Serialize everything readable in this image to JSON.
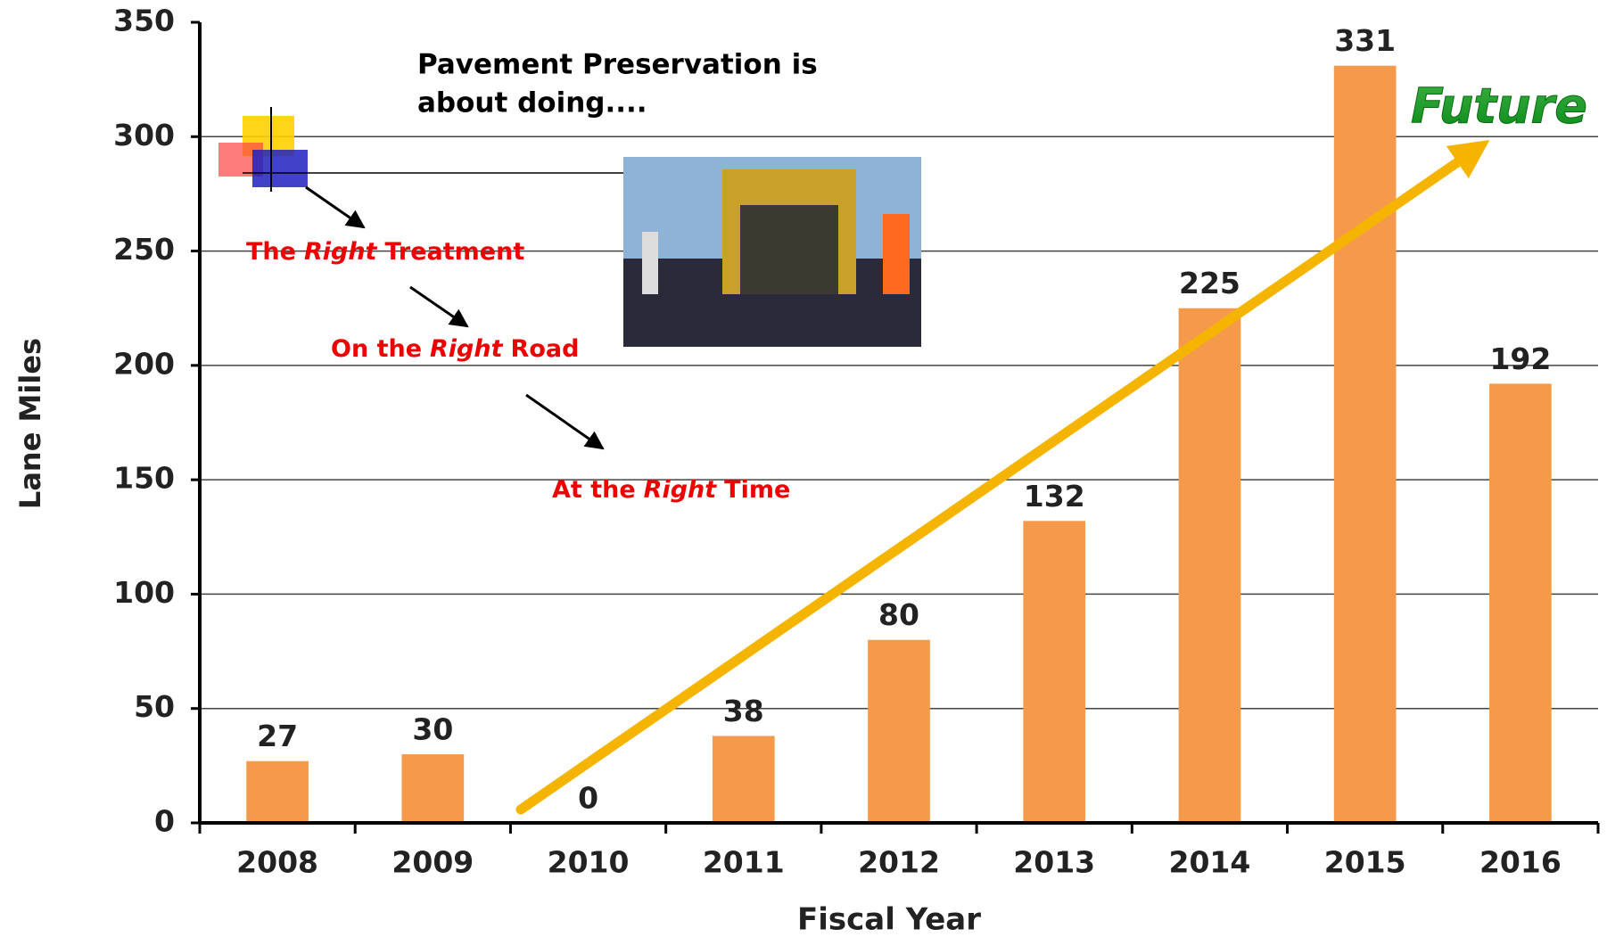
{
  "chart_data": {
    "type": "bar",
    "annotation_title": [
      "Pavement Preservation is",
      "about doing...."
    ],
    "annotation_lines": [
      [
        "The",
        "Right",
        "Treatment"
      ],
      [
        "On the",
        "Right",
        "Road"
      ],
      [
        "At the",
        "Right",
        "Time"
      ]
    ],
    "trend_label": "Future",
    "x_label": "Fiscal Year",
    "y_label": "Lane Miles",
    "categories": [
      "2008",
      "2009",
      "2010",
      "2011",
      "2012",
      "2013",
      "2014",
      "2015",
      "2016"
    ],
    "values": [
      27,
      30,
      0,
      38,
      80,
      132,
      225,
      331,
      192
    ],
    "color": "#f59a4b",
    "ylim": [
      0,
      350
    ],
    "yticks": [
      0,
      50,
      100,
      150,
      200,
      250,
      300,
      350
    ],
    "grid": true
  }
}
